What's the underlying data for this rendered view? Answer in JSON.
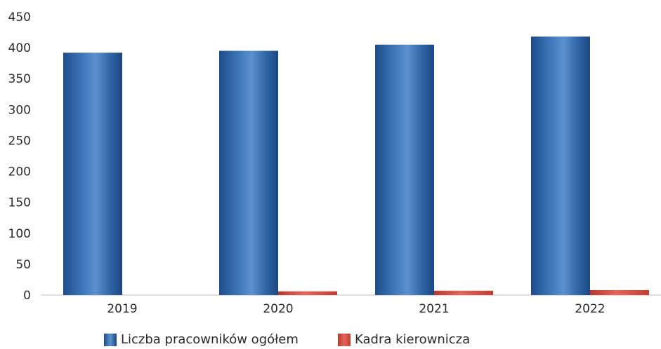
{
  "chart_data": {
    "type": "bar",
    "categories": [
      "2019",
      "2020",
      "2021",
      "2022"
    ],
    "series": [
      {
        "name": "Liczba pracowników ogółem",
        "values": [
          392,
          395,
          405,
          418
        ],
        "color": "#2e62a3"
      },
      {
        "name": "Kadra kierownicza",
        "values": [
          0,
          6,
          7,
          8
        ],
        "color": "#d9483b"
      }
    ],
    "y_ticks": [
      "0",
      "50",
      "100",
      "150",
      "200",
      "250",
      "300",
      "350",
      "400",
      "450"
    ],
    "ylim": [
      0,
      450
    ],
    "grid": false,
    "legend_position": "bottom"
  }
}
